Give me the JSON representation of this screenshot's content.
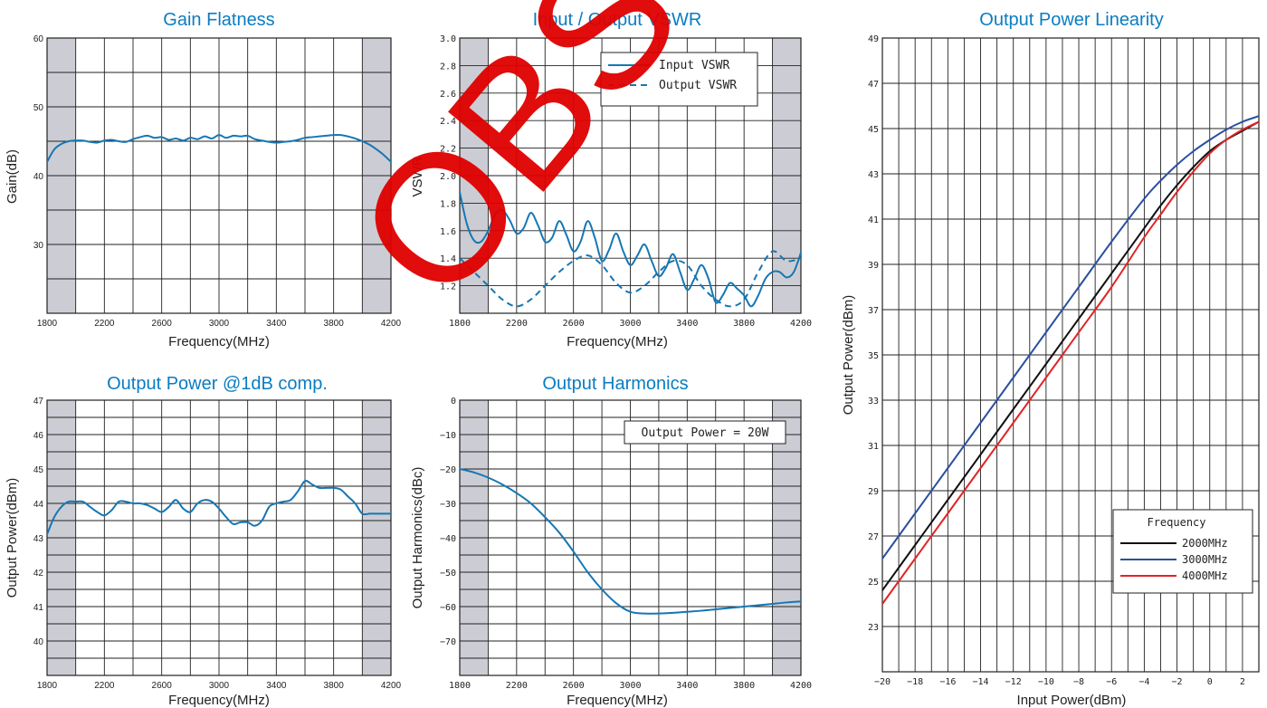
{
  "colors": {
    "title": "#0a7cc2",
    "curve": "#1577b4",
    "band": "#cccdd4",
    "grid": "#222222",
    "black": "#111111",
    "blue": "#2a4fa0",
    "red": "#e02424",
    "watermark": "#e00000"
  },
  "watermark": {
    "text": "OBS"
  },
  "chart_data": [
    {
      "id": "gain",
      "type": "line",
      "title": "Gain Flatness",
      "xlabel": "Frequency(MHz)",
      "ylabel": "Gain(dB)",
      "xlim": [
        1800,
        4200
      ],
      "ylim": [
        20,
        60
      ],
      "xticks": [
        1800,
        2200,
        2600,
        3000,
        3400,
        3800,
        4200
      ],
      "yticks": [
        30,
        40,
        50,
        60
      ],
      "x_grid_step": 200,
      "y_grid_step": 5,
      "shaded_bands": [
        [
          1800,
          2000
        ],
        [
          4000,
          4200
        ]
      ],
      "series": [
        {
          "style": "solid",
          "x": [
            1800,
            1850,
            1900,
            1950,
            2000,
            2050,
            2100,
            2150,
            2200,
            2250,
            2300,
            2350,
            2400,
            2450,
            2500,
            2550,
            2600,
            2650,
            2700,
            2750,
            2800,
            2850,
            2900,
            2950,
            3000,
            3050,
            3100,
            3150,
            3200,
            3250,
            3300,
            3350,
            3400,
            3450,
            3500,
            3550,
            3600,
            3650,
            3700,
            3750,
            3800,
            3850,
            3900,
            3950,
            4000,
            4050,
            4100,
            4150,
            4200
          ],
          "y": [
            42,
            43.8,
            44.6,
            45,
            45.1,
            45.1,
            44.9,
            44.8,
            45.1,
            45.2,
            45,
            44.9,
            45.3,
            45.6,
            45.8,
            45.5,
            45.6,
            45.2,
            45.4,
            45.1,
            45.5,
            45.3,
            45.7,
            45.4,
            45.9,
            45.5,
            45.8,
            45.7,
            45.8,
            45.3,
            45.1,
            44.9,
            44.8,
            44.9,
            45,
            45.2,
            45.5,
            45.6,
            45.7,
            45.8,
            45.9,
            45.9,
            45.7,
            45.4,
            45,
            44.5,
            43.8,
            43,
            42
          ]
        }
      ]
    },
    {
      "id": "vswr",
      "type": "line",
      "title": "Input / Output VSWR",
      "xlabel": "Frequency(MHz)",
      "ylabel": "VSWR",
      "xlim": [
        1800,
        4200
      ],
      "ylim": [
        1.0,
        3.0
      ],
      "xticks": [
        1800,
        2200,
        2600,
        3000,
        3400,
        3800,
        4200
      ],
      "yticks": [
        1.2,
        1.4,
        1.6,
        1.8,
        2.0,
        2.2,
        2.4,
        2.6,
        2.8,
        3.0
      ],
      "x_grid_step": 200,
      "y_grid_step": 0.2,
      "shaded_bands": [
        [
          1800,
          2000
        ],
        [
          4000,
          4200
        ]
      ],
      "legend": {
        "entries": [
          "Input VSWR",
          "Output VSWR"
        ],
        "position": "top-right"
      },
      "series": [
        {
          "name": "Input VSWR",
          "style": "solid",
          "x": [
            1800,
            1850,
            1900,
            1950,
            2000,
            2050,
            2100,
            2150,
            2200,
            2250,
            2300,
            2350,
            2400,
            2450,
            2500,
            2550,
            2600,
            2650,
            2700,
            2750,
            2800,
            2850,
            2900,
            2950,
            3000,
            3050,
            3100,
            3150,
            3200,
            3250,
            3300,
            3350,
            3400,
            3450,
            3500,
            3550,
            3600,
            3650,
            3700,
            3750,
            3800,
            3850,
            3900,
            3950,
            4000,
            4050,
            4100,
            4150,
            4200
          ],
          "y": [
            1.88,
            1.65,
            1.53,
            1.52,
            1.6,
            1.72,
            1.75,
            1.68,
            1.58,
            1.62,
            1.73,
            1.64,
            1.52,
            1.55,
            1.67,
            1.57,
            1.45,
            1.52,
            1.67,
            1.55,
            1.38,
            1.46,
            1.58,
            1.45,
            1.35,
            1.42,
            1.5,
            1.38,
            1.27,
            1.33,
            1.43,
            1.3,
            1.17,
            1.25,
            1.35,
            1.25,
            1.08,
            1.13,
            1.22,
            1.18,
            1.13,
            1.05,
            1.13,
            1.25,
            1.3,
            1.3,
            1.26,
            1.3,
            1.44
          ]
        },
        {
          "name": "Output VSWR",
          "style": "dashed",
          "x": [
            1800,
            1900,
            2000,
            2100,
            2200,
            2300,
            2400,
            2500,
            2600,
            2700,
            2800,
            2900,
            3000,
            3100,
            3200,
            3300,
            3400,
            3500,
            3600,
            3700,
            3800,
            3900,
            4000,
            4100,
            4200
          ],
          "y": [
            1.4,
            1.3,
            1.2,
            1.1,
            1.05,
            1.1,
            1.2,
            1.3,
            1.38,
            1.42,
            1.35,
            1.22,
            1.15,
            1.2,
            1.3,
            1.38,
            1.35,
            1.2,
            1.1,
            1.05,
            1.1,
            1.3,
            1.45,
            1.38,
            1.4
          ]
        }
      ]
    },
    {
      "id": "p1db",
      "type": "line",
      "title": "Output Power @1dB comp.",
      "xlabel": "Frequency(MHz)",
      "ylabel": "Output Power(dBm)",
      "xlim": [
        1800,
        4200
      ],
      "ylim": [
        39,
        47
      ],
      "xticks": [
        1800,
        2200,
        2600,
        3000,
        3400,
        3800,
        4200
      ],
      "yticks": [
        40,
        41,
        42,
        43,
        44,
        45,
        46,
        47
      ],
      "x_grid_step": 200,
      "y_grid_step": 0.5,
      "shaded_bands": [
        [
          1800,
          2000
        ],
        [
          4000,
          4200
        ]
      ],
      "series": [
        {
          "style": "solid",
          "x": [
            1800,
            1850,
            1900,
            1950,
            2000,
            2050,
            2100,
            2150,
            2200,
            2250,
            2300,
            2350,
            2400,
            2450,
            2500,
            2550,
            2600,
            2650,
            2700,
            2750,
            2800,
            2850,
            2900,
            2950,
            3000,
            3050,
            3100,
            3150,
            3200,
            3250,
            3300,
            3350,
            3400,
            3450,
            3500,
            3550,
            3600,
            3650,
            3700,
            3750,
            3800,
            3850,
            3900,
            3950,
            4000,
            4050,
            4100,
            4150,
            4200
          ],
          "y": [
            43.1,
            43.6,
            43.9,
            44.05,
            44.05,
            44.05,
            43.9,
            43.75,
            43.65,
            43.8,
            44.05,
            44.05,
            44,
            44,
            43.95,
            43.85,
            43.75,
            43.9,
            44.1,
            43.85,
            43.75,
            44,
            44.1,
            44.05,
            43.85,
            43.6,
            43.4,
            43.45,
            43.45,
            43.35,
            43.5,
            43.9,
            44,
            44.05,
            44.1,
            44.35,
            44.65,
            44.55,
            44.45,
            44.45,
            44.45,
            44.4,
            44.2,
            44,
            43.7,
            43.7,
            43.7,
            43.7,
            43.7
          ]
        }
      ]
    },
    {
      "id": "harm",
      "type": "line",
      "title": "Output Harmonics",
      "xlabel": "Frequency(MHz)",
      "ylabel": "Output Harmonics(dBc)",
      "xlim": [
        1800,
        4200
      ],
      "ylim": [
        -80,
        0
      ],
      "xticks": [
        1800,
        2200,
        2600,
        3000,
        3400,
        3800,
        4200
      ],
      "yticks": [
        -70,
        -60,
        -50,
        -40,
        -30,
        -20,
        -10,
        0
      ],
      "x_grid_step": 200,
      "y_grid_step": 5,
      "shaded_bands": [
        [
          1800,
          2000
        ],
        [
          4000,
          4200
        ]
      ],
      "annotation": "Output Power = 20W",
      "series": [
        {
          "style": "solid",
          "x": [
            1800,
            1900,
            2000,
            2100,
            2200,
            2300,
            2400,
            2500,
            2600,
            2700,
            2800,
            2900,
            3000,
            3100,
            3200,
            3300,
            3400,
            3500,
            3600,
            3700,
            3800,
            3900,
            4000,
            4100,
            4200
          ],
          "y": [
            -20,
            -21,
            -22.5,
            -24.5,
            -27,
            -30,
            -34,
            -38.5,
            -44,
            -50,
            -55,
            -59,
            -61.5,
            -62,
            -62,
            -61.8,
            -61.5,
            -61.2,
            -60.8,
            -60.4,
            -60,
            -59.6,
            -59.2,
            -58.8,
            -58.5
          ]
        }
      ]
    },
    {
      "id": "lin",
      "type": "line",
      "title": "Output Power Linearity",
      "xlabel": "Input Power(dBm)",
      "ylabel": "Output Power(dBm)",
      "xlim": [
        -20,
        3
      ],
      "ylim": [
        21,
        49
      ],
      "xticks": [
        -20,
        -18,
        -16,
        -14,
        -12,
        -10,
        -8,
        -6,
        -4,
        -2,
        0,
        2
      ],
      "yticks": [
        23,
        25,
        27,
        29,
        31,
        33,
        35,
        37,
        39,
        41,
        43,
        45,
        47,
        49
      ],
      "x_grid_step": 1,
      "y_grid_step": 2,
      "legend": {
        "title": "Frequency",
        "entries": [
          "2000MHz",
          "3000MHz",
          "4000MHz"
        ],
        "position": "bottom-right"
      },
      "series": [
        {
          "name": "2000MHz",
          "color": "#111111",
          "style": "solid",
          "x": [
            -20,
            -18,
            -16,
            -14,
            -12,
            -10,
            -8,
            -6,
            -4,
            -3,
            -2,
            -1,
            0,
            1,
            2,
            3
          ],
          "y": [
            24.6,
            26.6,
            28.6,
            30.6,
            32.6,
            34.6,
            36.6,
            38.6,
            40.6,
            41.6,
            42.5,
            43.3,
            44,
            44.5,
            44.9,
            45.3
          ]
        },
        {
          "name": "3000MHz",
          "color": "#2a4fa0",
          "style": "solid",
          "x": [
            -20,
            -18,
            -16,
            -14,
            -12,
            -10,
            -8,
            -6,
            -4,
            -3,
            -2,
            -1,
            0,
            1,
            2,
            3
          ],
          "y": [
            26,
            28,
            30,
            32,
            34,
            36,
            38,
            40,
            41.9,
            42.7,
            43.4,
            44,
            44.5,
            44.95,
            45.3,
            45.55
          ]
        },
        {
          "name": "4000MHz",
          "color": "#e02424",
          "style": "solid",
          "x": [
            -20,
            -18,
            -16,
            -14,
            -12,
            -10,
            -8,
            -6,
            -4,
            -3,
            -2,
            -1,
            0,
            1,
            2,
            3
          ],
          "y": [
            24,
            26,
            28,
            30,
            32,
            34,
            36,
            38,
            40.2,
            41.2,
            42.2,
            43.1,
            43.9,
            44.5,
            44.95,
            45.3
          ]
        }
      ]
    }
  ]
}
